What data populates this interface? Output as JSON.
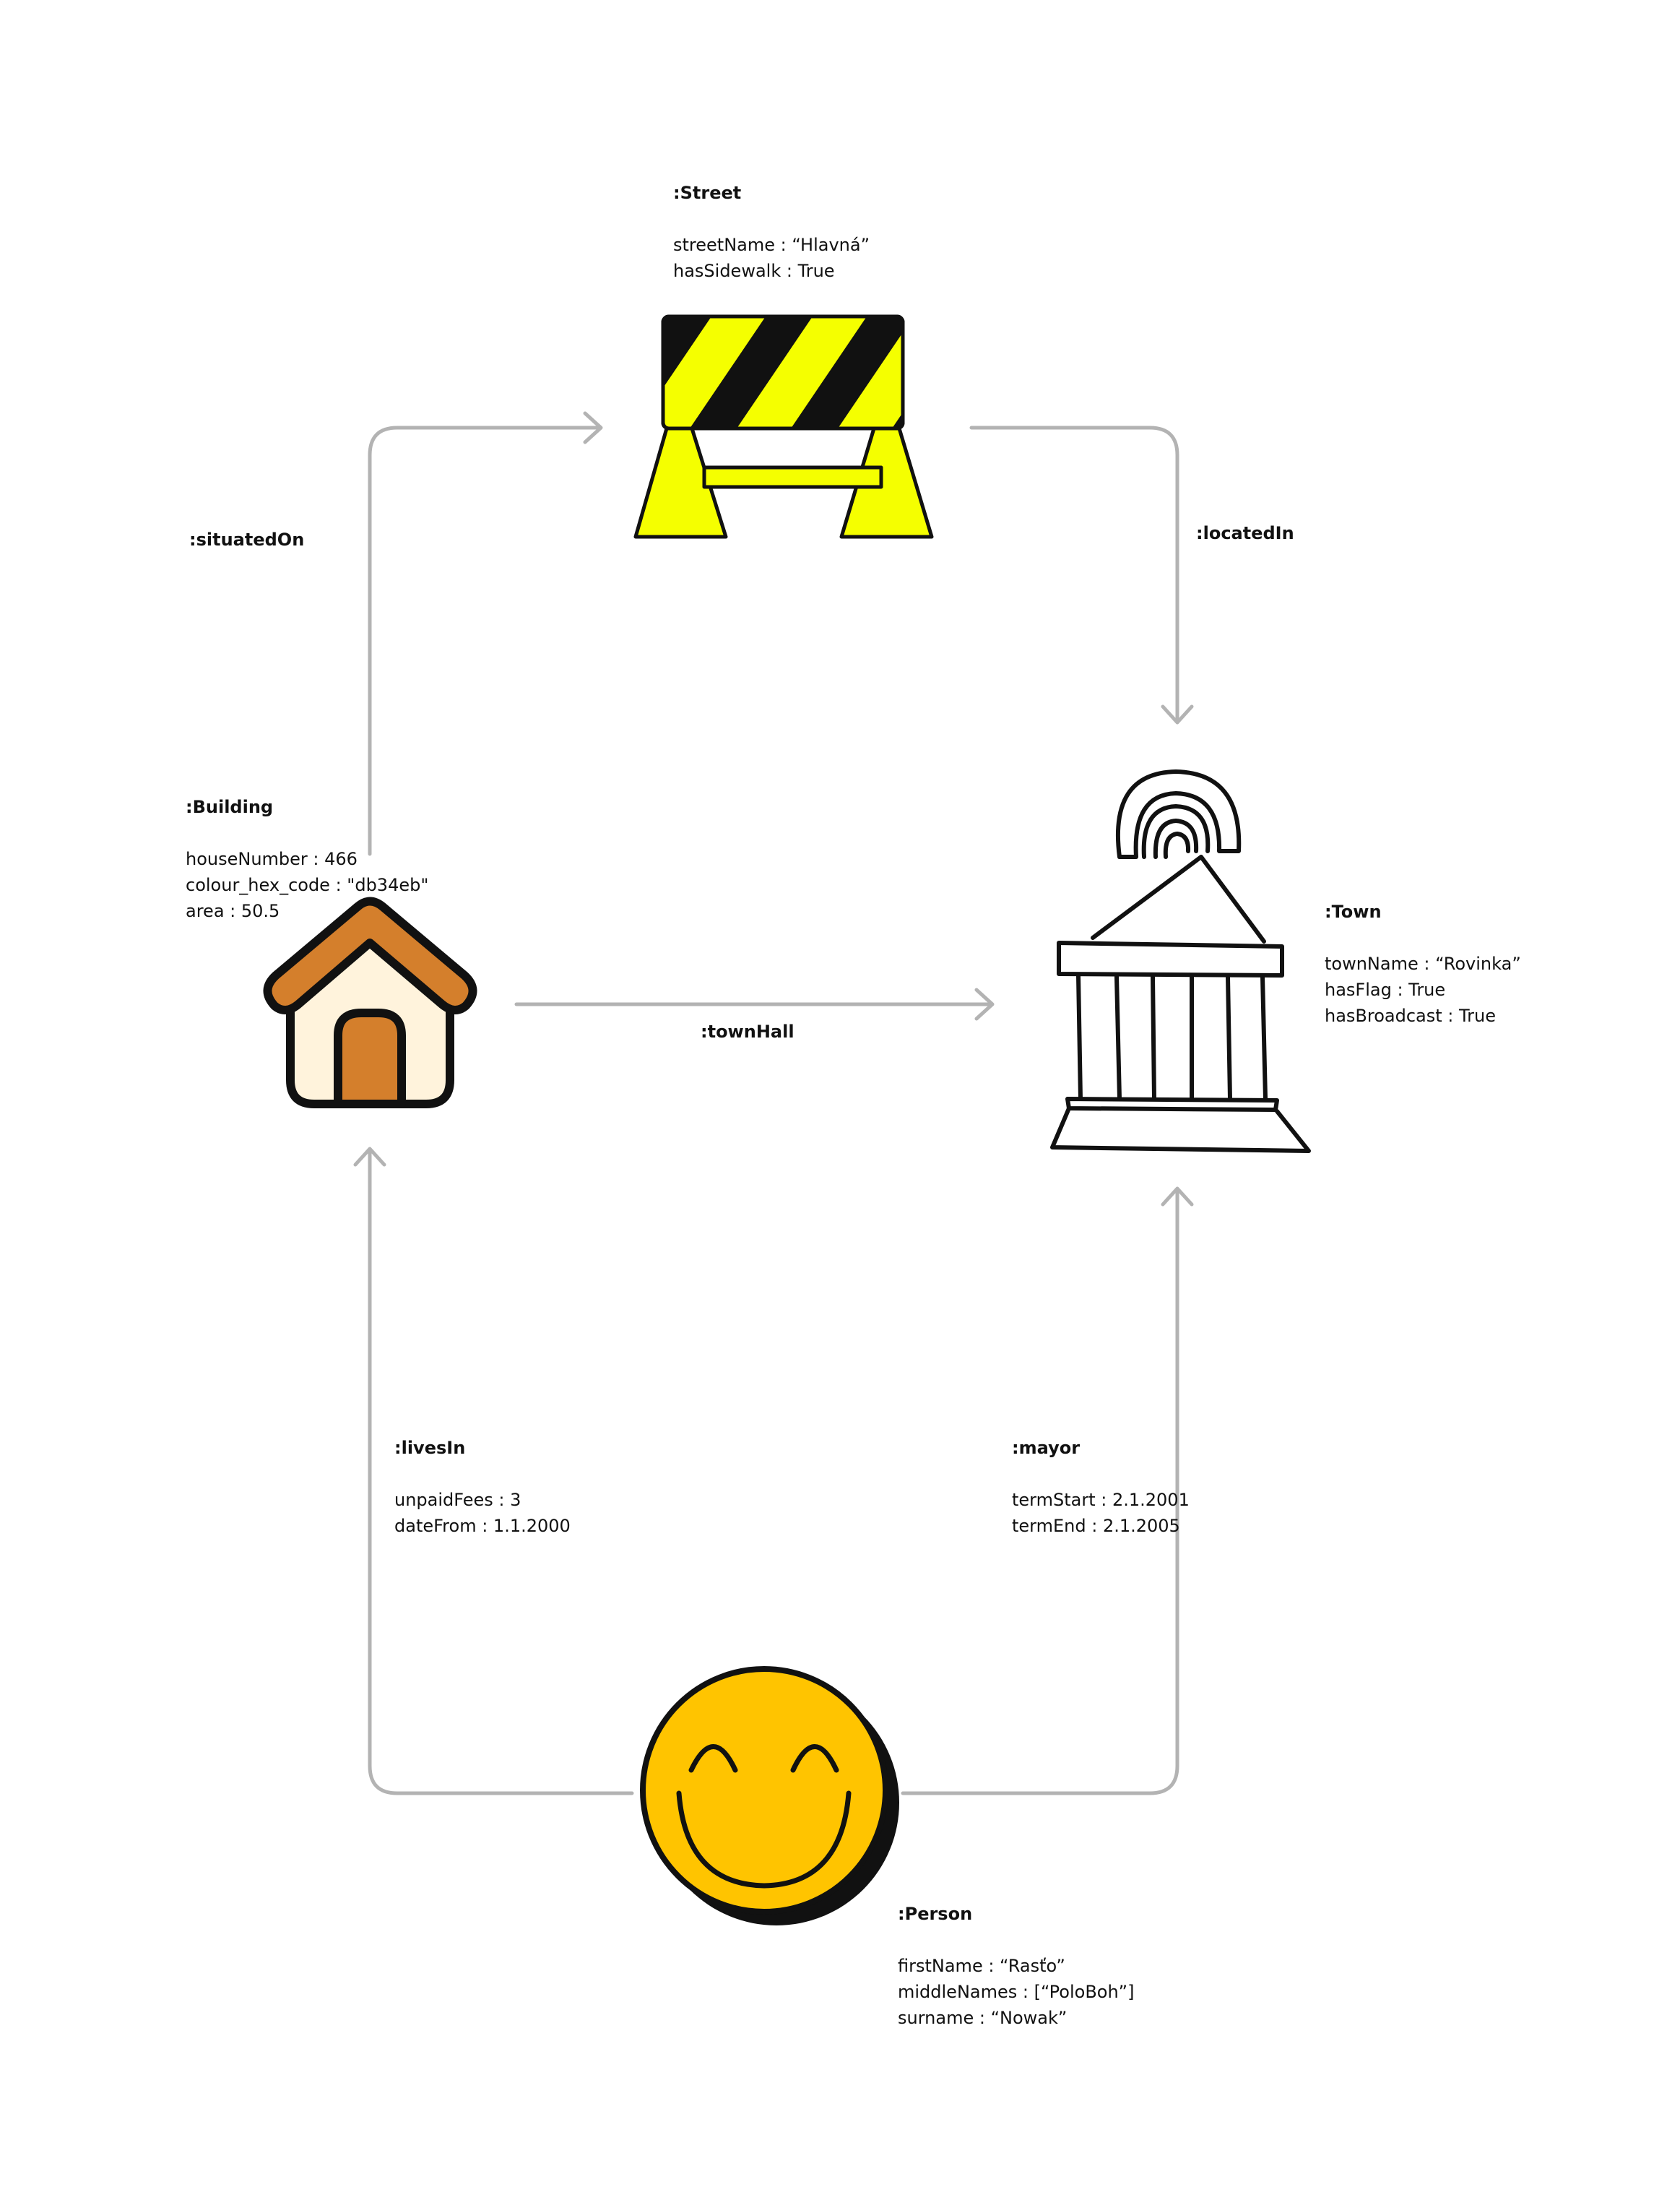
{
  "colors": {
    "connector": "#b3b3b3",
    "outline": "#111111",
    "barrier_yellow": "#f5ff00",
    "house_roof": "#d47f2c",
    "house_wall": "#fff3dc",
    "smiley_face": "#ffc400"
  },
  "icons": {
    "street": "road-barrier-icon",
    "building": "house-icon",
    "town": "town-hall-icon",
    "person": "smiley-face-icon"
  },
  "street": {
    "title": ":Street",
    "attributes": [
      "streetName : “Hlavná”",
      "hasSidewalk : True"
    ]
  },
  "building": {
    "title": ":Building",
    "attributes": [
      "houseNumber : 466",
      "colour_hex_code : \"db34eb\"",
      "area : 50.5"
    ]
  },
  "town": {
    "title": ":Town",
    "attributes": [
      "townName : “Rovinka”",
      "hasFlag : True",
      "hasBroadcast : True"
    ]
  },
  "person": {
    "title": ":Person",
    "attributes": [
      "firstName : “Rasťo”",
      "middleNames : [“PoloBoh”]",
      "surname : “Nowak”"
    ]
  },
  "edges": {
    "situated_on": {
      "label": ":situatedOn"
    },
    "located_in": {
      "label": ":locatedIn"
    },
    "town_hall": {
      "label": ":townHall"
    },
    "lives_in": {
      "label": ":livesIn",
      "attributes": [
        "unpaidFees : 3",
        "dateFrom : 1.1.2000"
      ]
    },
    "mayor": {
      "label": ":mayor",
      "attributes": [
        "termStart : 2.1.2001",
        "termEnd : 2.1.2005"
      ]
    }
  }
}
